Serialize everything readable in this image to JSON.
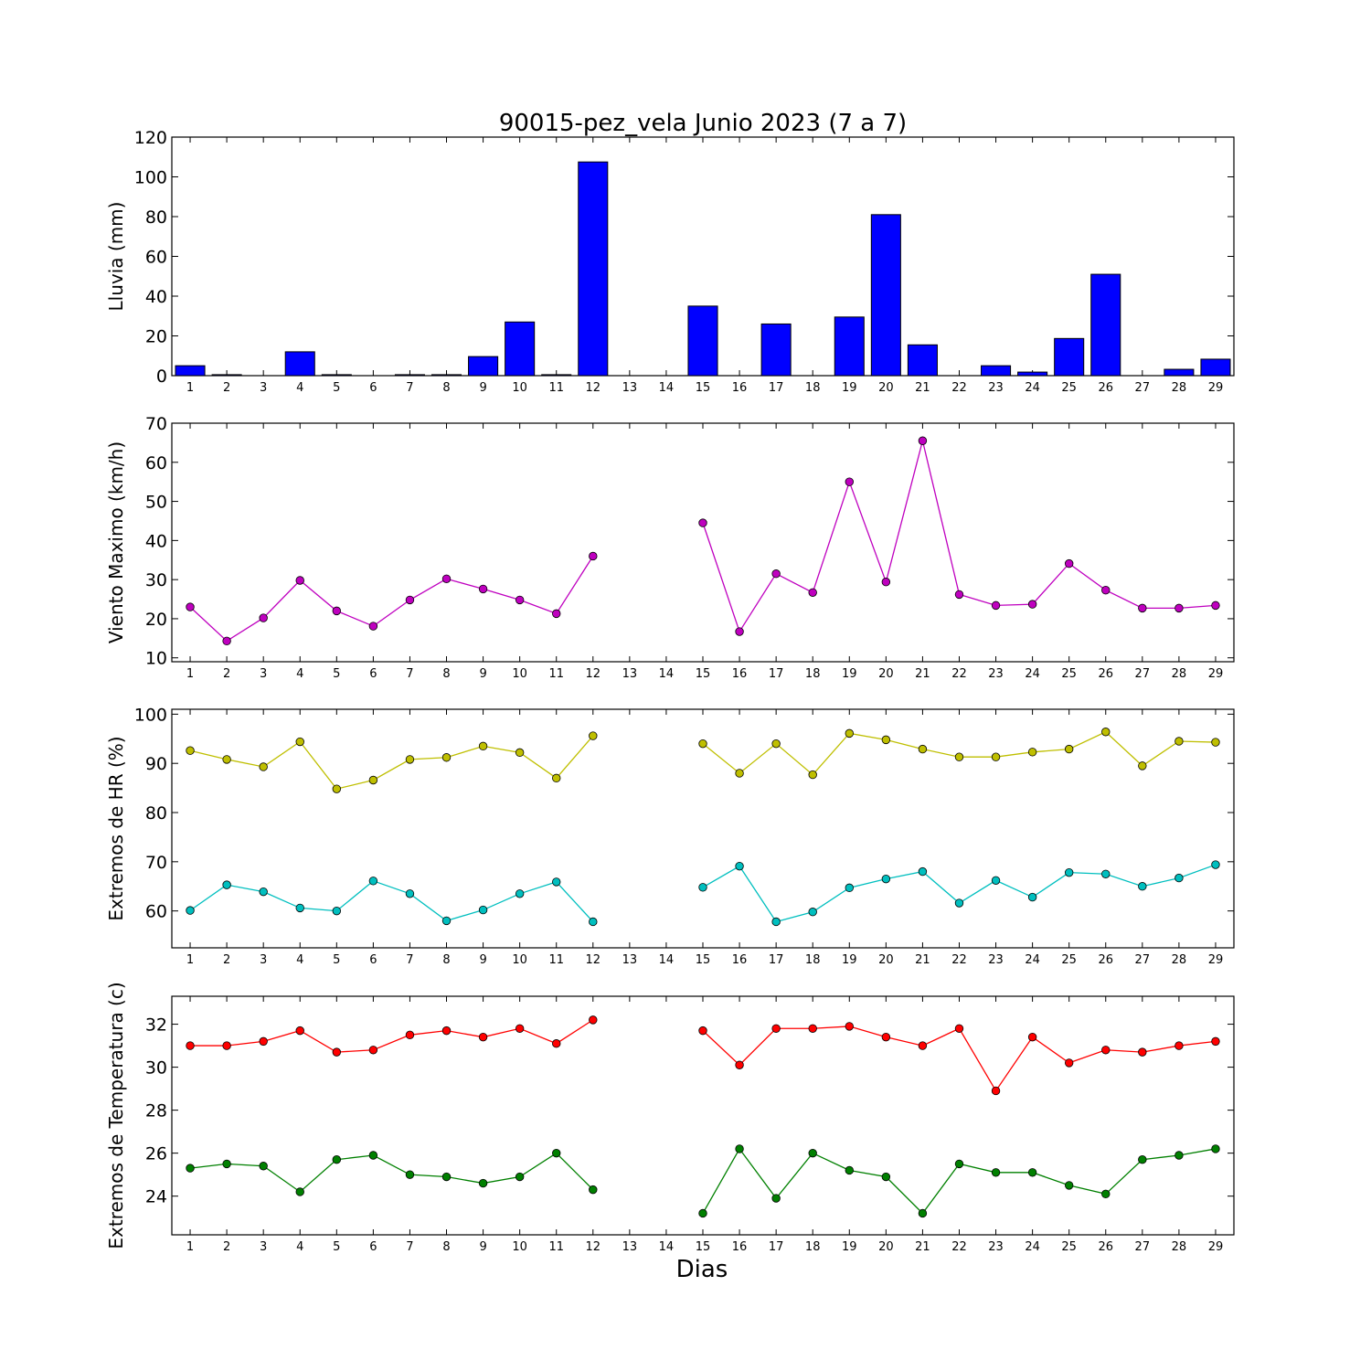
{
  "title": "90015-pez_vela Junio 2023  (7 a 7)",
  "xlabel": "Dias",
  "days": [
    1,
    2,
    3,
    4,
    5,
    6,
    7,
    8,
    9,
    10,
    11,
    12,
    13,
    14,
    15,
    16,
    17,
    18,
    19,
    20,
    21,
    22,
    23,
    24,
    25,
    26,
    27,
    28,
    29
  ],
  "chart_data": [
    {
      "type": "bar",
      "ylabel": "Lluvia (mm)",
      "ylim": [
        0,
        120
      ],
      "yticks": [
        0,
        20,
        40,
        60,
        80,
        100,
        120
      ],
      "series": [
        {
          "color": "#0000ff",
          "values": [
            5,
            0.5,
            0,
            12,
            0.5,
            0,
            0.5,
            0.5,
            9.6,
            27,
            0.5,
            107.5,
            0,
            0,
            35,
            0,
            26,
            0,
            29.5,
            81,
            15.5,
            0,
            5,
            1.8,
            18.7,
            51,
            0,
            3.2,
            8.3
          ]
        }
      ]
    },
    {
      "type": "line",
      "ylabel": "Viento Maximo (km/h)",
      "ylim": [
        9,
        70
      ],
      "yticks": [
        10,
        20,
        30,
        40,
        50,
        60,
        70
      ],
      "series": [
        {
          "color": "#bf00bf",
          "values": [
            23,
            14.3,
            20.2,
            29.8,
            22,
            18.1,
            24.8,
            30.2,
            27.6,
            24.8,
            21.3,
            36,
            null,
            null,
            44.5,
            16.7,
            31.5,
            26.7,
            55,
            29.4,
            65.5,
            26.2,
            23.4,
            23.7,
            34.1,
            27.3,
            22.7,
            22.7,
            23.4
          ]
        }
      ]
    },
    {
      "type": "line",
      "ylabel": "Extremos de HR (%)",
      "ylim": [
        52.5,
        101
      ],
      "yticks": [
        60,
        70,
        80,
        90,
        100
      ],
      "series": [
        {
          "color": "#bfbf00",
          "values": [
            92.6,
            90.8,
            89.3,
            94.4,
            84.8,
            86.6,
            90.8,
            91.2,
            93.5,
            92.2,
            87,
            95.6,
            null,
            null,
            94,
            88,
            94,
            87.7,
            96.1,
            94.8,
            92.9,
            91.3,
            91.3,
            92.3,
            92.9,
            96.4,
            89.5,
            94.5,
            94.3
          ]
        },
        {
          "color": "#00bfbf",
          "values": [
            60.1,
            65.3,
            63.9,
            60.6,
            60,
            66.1,
            63.5,
            58,
            60.2,
            63.5,
            65.9,
            57.8,
            null,
            null,
            64.8,
            69.1,
            57.8,
            59.8,
            64.7,
            66.5,
            68,
            61.6,
            66.2,
            62.8,
            67.8,
            67.5,
            65,
            66.7,
            69.4
          ]
        }
      ]
    },
    {
      "type": "line",
      "ylabel": "Extremos de Temperatura (c)",
      "ylim": [
        22.2,
        33.3
      ],
      "yticks": [
        24,
        26,
        28,
        30,
        32
      ],
      "series": [
        {
          "color": "#ff0000",
          "values": [
            31,
            31,
            31.2,
            31.7,
            30.7,
            30.8,
            31.5,
            31.7,
            31.4,
            31.8,
            31.1,
            32.2,
            null,
            null,
            31.7,
            30.1,
            31.8,
            31.8,
            31.9,
            31.4,
            31,
            31.8,
            28.9,
            31.4,
            30.2,
            30.8,
            30.7,
            31,
            31.2
          ]
        },
        {
          "color": "#008000",
          "values": [
            25.3,
            25.5,
            25.4,
            24.2,
            25.7,
            25.9,
            25,
            24.9,
            24.6,
            24.9,
            26,
            24.3,
            null,
            null,
            23.2,
            26.2,
            23.9,
            26,
            25.2,
            24.9,
            23.2,
            25.5,
            25.1,
            25.1,
            24.5,
            24.1,
            25.7,
            25.9,
            26.2
          ]
        }
      ]
    }
  ]
}
